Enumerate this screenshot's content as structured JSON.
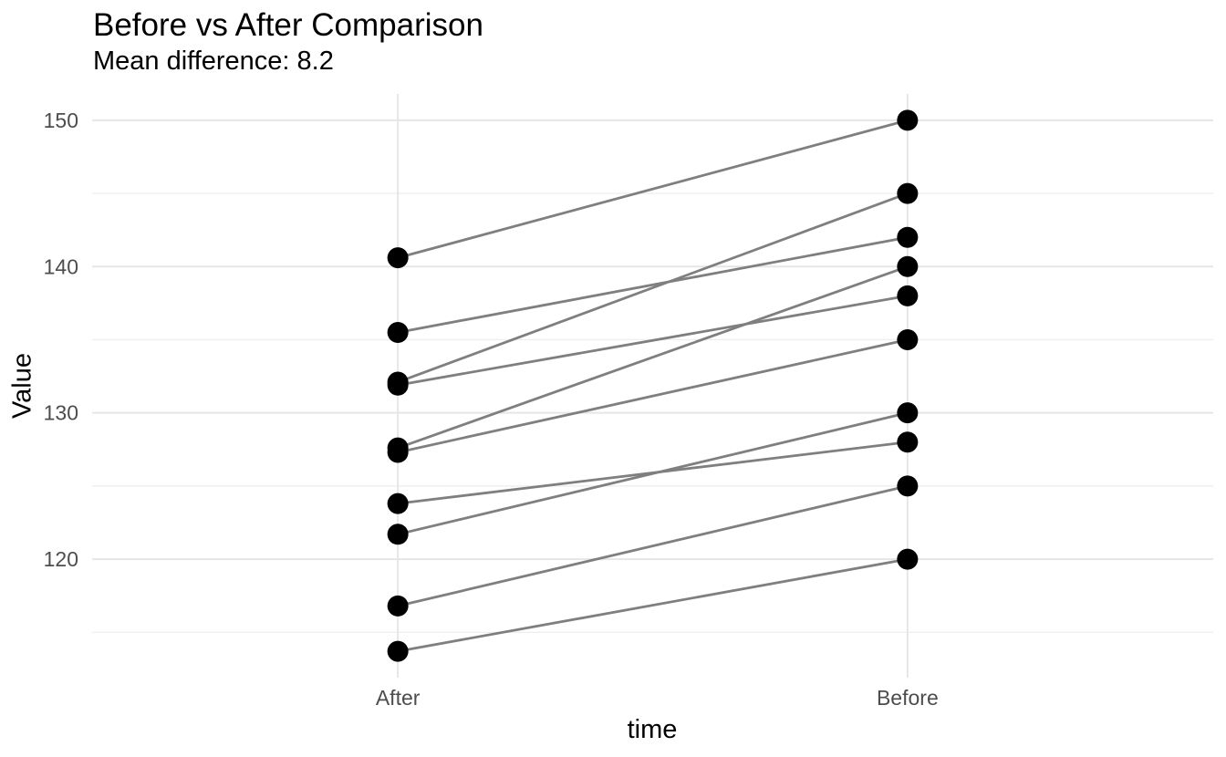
{
  "page": {
    "title": "Before vs After Comparison",
    "subtitle": "Mean difference: 8.2"
  },
  "chart_data": {
    "type": "line",
    "variant": "paired-slope",
    "title": "Before vs After Comparison",
    "subtitle": "Mean difference: 8.2",
    "xlabel": "time",
    "ylabel": "Value",
    "x_categories": [
      "After",
      "Before"
    ],
    "y_major_ticks": [
      120,
      130,
      140,
      150
    ],
    "y_minor_ticks": [
      115,
      125,
      135,
      145
    ],
    "ylim": [
      111.9,
      151.8
    ],
    "grid": "horizontal major+minor gridlines, vertical gridline at each category",
    "legend": "none",
    "mean_difference": 8.2,
    "pairs": [
      {
        "before": 150,
        "after": 140.6
      },
      {
        "before": 145,
        "after": 132.1
      },
      {
        "before": 142,
        "after": 135.5
      },
      {
        "before": 140,
        "after": 127.6
      },
      {
        "before": 138,
        "after": 131.9
      },
      {
        "before": 135,
        "after": 127.3
      },
      {
        "before": 130,
        "after": 121.7
      },
      {
        "before": 128,
        "after": 123.8
      },
      {
        "before": 125,
        "after": 116.8
      },
      {
        "before": 120,
        "after": 113.7
      }
    ],
    "colors": {
      "point": "#000000",
      "line": "#7f7f7f",
      "grid_major": "#e6e6e6",
      "grid_minor": "#efefef",
      "tick_label": "#4d4d4d",
      "text": "#000000",
      "background": "#ffffff"
    }
  }
}
